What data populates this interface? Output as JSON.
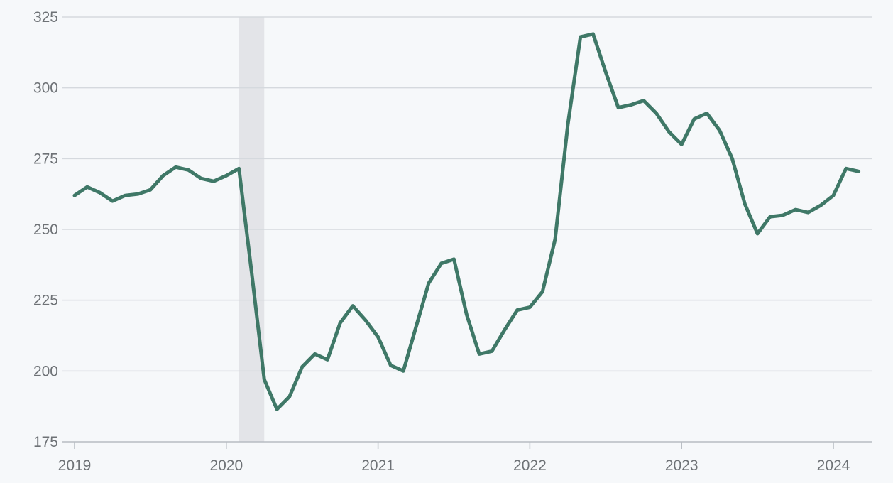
{
  "chart_data": {
    "type": "line",
    "title": "",
    "xlabel": "",
    "ylabel": "",
    "ylim": [
      175,
      325
    ],
    "yticks": [
      175,
      200,
      225,
      250,
      275,
      300,
      325
    ],
    "xlim": [
      "2019-01",
      "2024-04"
    ],
    "xticks": [
      "2019",
      "2020",
      "2021",
      "2022",
      "2023",
      "2024"
    ],
    "grid": true,
    "legend": "none",
    "shaded_period": {
      "start": "2020-02",
      "end": "2020-04"
    },
    "colors": {
      "line": "#3f7867",
      "shade": "#dfe1e4",
      "grid": "#d5d9de",
      "tick_text": "#6e7276",
      "background": "#f6f8fa"
    },
    "series": [
      {
        "x": [
          "2019-01",
          "2019-02",
          "2019-03",
          "2019-04",
          "2019-05",
          "2019-06",
          "2019-07",
          "2019-08",
          "2019-09",
          "2019-10",
          "2019-11",
          "2019-12",
          "2020-01",
          "2020-02",
          "2020-03",
          "2020-04",
          "2020-05",
          "2020-06",
          "2020-07",
          "2020-08",
          "2020-09",
          "2020-10",
          "2020-11",
          "2020-12",
          "2021-01",
          "2021-02",
          "2021-03",
          "2021-04",
          "2021-05",
          "2021-06",
          "2021-07",
          "2021-08",
          "2021-09",
          "2021-10",
          "2021-11",
          "2021-12",
          "2022-01",
          "2022-02",
          "2022-03",
          "2022-04",
          "2022-05",
          "2022-06",
          "2022-07",
          "2022-08",
          "2022-09",
          "2022-10",
          "2022-11",
          "2022-12",
          "2023-01",
          "2023-02",
          "2023-03",
          "2023-04",
          "2023-05",
          "2023-06",
          "2023-07",
          "2023-08",
          "2023-09",
          "2023-10",
          "2023-11",
          "2023-12",
          "2024-01",
          "2024-02",
          "2024-03"
        ],
        "values": [
          262,
          265,
          263,
          260,
          262,
          262.5,
          264,
          269,
          272,
          271,
          268,
          267,
          269,
          271.5,
          235,
          197,
          186.5,
          191,
          201.5,
          206,
          204,
          217,
          223,
          218,
          212,
          202,
          200,
          215.5,
          231,
          238,
          239.5,
          220,
          206,
          207,
          214.5,
          221.5,
          222.5,
          228,
          246.5,
          287,
          318,
          319,
          305.5,
          293,
          294,
          295.5,
          291,
          284.5,
          280,
          289,
          291,
          285,
          275,
          259,
          248.5,
          254.5,
          255,
          257,
          256,
          258.5,
          262,
          271.5,
          270.5
        ]
      }
    ]
  }
}
